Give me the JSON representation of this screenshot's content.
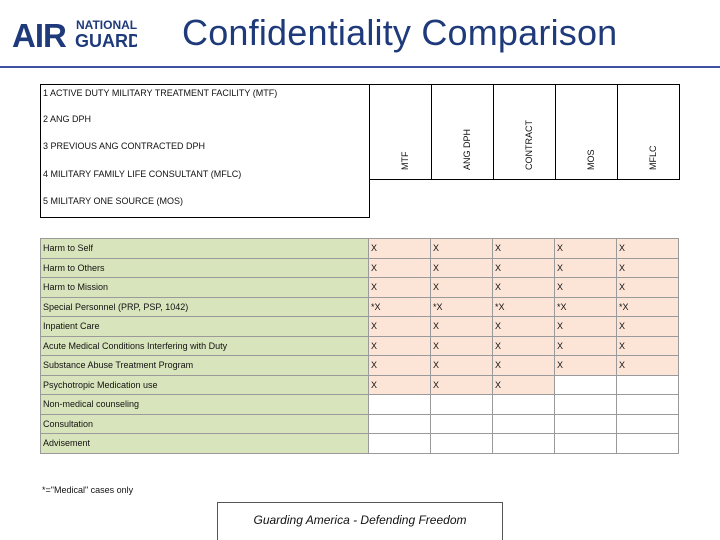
{
  "header": {
    "logo_text_main": "AIR",
    "logo_text_sub1": "NATIONAL",
    "logo_text_sub2": "GUARD",
    "title": "Confidentiality Comparison"
  },
  "legend": [
    "1 ACTIVE DUTY MILITARY TREATMENT FACILITY (MTF)",
    "2 ANG DPH",
    "3 PREVIOUS ANG CONTRACTED DPH",
    "4 MILITARY FAMILY LIFE CONSULTANT (MFLC)",
    "5 MILITARY ONE SOURCE (MOS)"
  ],
  "columns": [
    "MTF",
    "ANG DPH",
    "CONTRACT",
    "MOS",
    "MFLC"
  ],
  "rows": [
    {
      "label": "Harm to Self",
      "cells": [
        "X",
        "X",
        "X",
        "X",
        "X"
      ]
    },
    {
      "label": "Harm to Others",
      "cells": [
        "X",
        "X",
        "X",
        "X",
        "X"
      ]
    },
    {
      "label": "Harm to Mission",
      "cells": [
        "X",
        "X",
        "X",
        "X",
        "X"
      ]
    },
    {
      "label": "Special Personnel (PRP, PSP, 1042)",
      "cells": [
        "*X",
        "*X",
        "*X",
        "*X",
        "*X"
      ]
    },
    {
      "label": "Inpatient Care",
      "cells": [
        "X",
        "X",
        "X",
        "X",
        "X"
      ]
    },
    {
      "label": "Acute Medical Conditions Interfering with Duty",
      "cells": [
        "X",
        "X",
        "X",
        "X",
        "X"
      ]
    },
    {
      "label": "Substance Abuse Treatment Program",
      "cells": [
        "X",
        "X",
        "X",
        "X",
        "X"
      ]
    },
    {
      "label": "Psychotropic Medication use",
      "cells": [
        "X",
        "X",
        "X",
        "",
        ""
      ]
    },
    {
      "label": "Non-medical counseling",
      "cells": [
        "",
        "",
        "",
        "",
        ""
      ]
    },
    {
      "label": "Consultation",
      "cells": [
        "",
        "",
        "",
        "",
        ""
      ]
    },
    {
      "label": "Advisement",
      "cells": [
        "",
        "",
        "",
        "",
        ""
      ]
    }
  ],
  "footnote": "*=\"Medical\" cases only",
  "footer": "Guarding America - Defending Freedom",
  "colors": {
    "title": "#1f3a7a",
    "logo": "#1f3a7a",
    "label_fill": "#d8e4bc",
    "mark_fill": "#fce4d6"
  }
}
